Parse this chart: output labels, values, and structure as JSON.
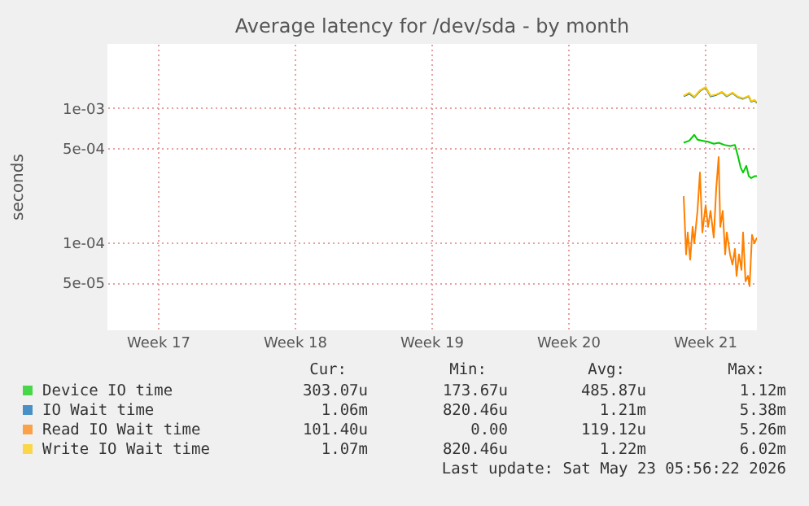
{
  "chart_data": {
    "type": "line",
    "title": "Average latency for /dev/sda - by month",
    "ylabel": "seconds",
    "log": true,
    "grid": true,
    "legend": "bottom",
    "line_style": "solid",
    "xlim": [
      "2026-04-20T00:00",
      "2026-05-23T06:00"
    ],
    "xticks": [
      {
        "value": "2026-04-22T14:00",
        "label": "Week 17"
      },
      {
        "value": "2026-04-29T14:00",
        "label": "Week 18"
      },
      {
        "value": "2026-05-06T14:00",
        "label": "Week 19"
      },
      {
        "value": "2026-05-13T14:00",
        "label": "Week 20"
      },
      {
        "value": "2026-05-20T14:00",
        "label": "Week 21"
      }
    ],
    "ylim": [
      2.2e-05,
      0.003
    ],
    "yticks": [
      {
        "value": 5e-05,
        "label": "5e-05"
      },
      {
        "value": 0.0001,
        "label": "1e-04"
      },
      {
        "value": 0.0005,
        "label": "5e-04"
      },
      {
        "value": 0.001,
        "label": "1e-03"
      }
    ],
    "series": [
      {
        "name": "Device IO time",
        "color": "#00cc00",
        "x": [
          "2026-05-19T12:00",
          "2026-05-19T19:00",
          "2026-05-20T01:00",
          "2026-05-20T05:00",
          "2026-05-20T11:00",
          "2026-05-20T18:00",
          "2026-05-21T01:00",
          "2026-05-21T07:00",
          "2026-05-21T14:00",
          "2026-05-21T21:00",
          "2026-05-22T03:00",
          "2026-05-22T07:00",
          "2026-05-22T10:00",
          "2026-05-22T13:00",
          "2026-05-22T17:00",
          "2026-05-22T20:00",
          "2026-05-22T23:00",
          "2026-05-23T03:00",
          "2026-05-23T06:00"
        ],
        "values": [
          0.00055,
          0.00057,
          0.00063,
          0.00058,
          0.00057,
          0.00056,
          0.00054,
          0.00055,
          0.00053,
          0.00052,
          0.00053,
          0.00043,
          0.00036,
          0.00033,
          0.00037,
          0.00031,
          0.0003,
          0.00031,
          0.00031
        ]
      },
      {
        "name": "IO Wait time",
        "color": "#0066b3",
        "x": [
          "2026-05-19T12:00",
          "2026-05-19T19:00",
          "2026-05-20T01:00",
          "2026-05-20T08:00",
          "2026-05-20T15:00",
          "2026-05-20T21:00",
          "2026-05-21T04:00",
          "2026-05-21T11:00",
          "2026-05-21T17:00",
          "2026-05-22T00:00",
          "2026-05-22T07:00",
          "2026-05-22T13:00",
          "2026-05-22T20:00",
          "2026-05-22T23:00",
          "2026-05-23T03:00",
          "2026-05-23T06:00"
        ],
        "values": [
          0.00122,
          0.00128,
          0.0012,
          0.00134,
          0.00142,
          0.00122,
          0.00125,
          0.00131,
          0.00122,
          0.00129,
          0.0012,
          0.00117,
          0.00122,
          0.00111,
          0.00114,
          0.00109
        ]
      },
      {
        "name": "Read IO Wait time",
        "color": "#ff8000",
        "x": [
          "2026-05-19T12:00",
          "2026-05-19T15:00",
          "2026-05-19T17:00",
          "2026-05-19T20:00",
          "2026-05-19T23:00",
          "2026-05-20T01:00",
          "2026-05-20T05:00",
          "2026-05-20T08:00",
          "2026-05-20T11:00",
          "2026-05-20T15:00",
          "2026-05-20T18:00",
          "2026-05-20T21:00",
          "2026-05-21T01:00",
          "2026-05-21T04:00",
          "2026-05-21T07:00",
          "2026-05-21T09:00",
          "2026-05-21T12:00",
          "2026-05-21T15:00",
          "2026-05-21T17:00",
          "2026-05-21T21:00",
          "2026-05-22T00:00",
          "2026-05-22T03:00",
          "2026-05-22T05:00",
          "2026-05-22T08:00",
          "2026-05-22T11:00",
          "2026-05-22T13:00",
          "2026-05-22T16:00",
          "2026-05-22T19:00",
          "2026-05-22T21:00",
          "2026-05-23T00:00",
          "2026-05-23T03:00",
          "2026-05-23T06:00"
        ],
        "values": [
          0.00022,
          8.1e-05,
          0.000118,
          7.4e-05,
          0.00013,
          9.8e-05,
          0.000171,
          0.00033,
          0.000118,
          0.000188,
          0.00013,
          0.000171,
          0.000108,
          0.00025,
          0.00043,
          0.00013,
          0.000171,
          8.1e-05,
          0.000118,
          8.1e-05,
          6.8e-05,
          8.9e-05,
          5.6e-05,
          8.1e-05,
          6.2e-05,
          0.000118,
          5.1e-05,
          5.6e-05,
          4.7e-05,
          0.000113,
          9.8e-05,
          0.000108
        ]
      },
      {
        "name": "Write IO Wait time",
        "color": "#ffcc00",
        "x": [
          "2026-05-19T12:00",
          "2026-05-19T19:00",
          "2026-05-20T01:00",
          "2026-05-20T08:00",
          "2026-05-20T15:00",
          "2026-05-20T21:00",
          "2026-05-21T04:00",
          "2026-05-21T11:00",
          "2026-05-21T17:00",
          "2026-05-22T00:00",
          "2026-05-22T07:00",
          "2026-05-22T13:00",
          "2026-05-22T20:00",
          "2026-05-22T23:00",
          "2026-05-23T03:00",
          "2026-05-23T06:00"
        ],
        "values": [
          0.00123,
          0.0013,
          0.00121,
          0.00135,
          0.00143,
          0.00123,
          0.00126,
          0.00132,
          0.00123,
          0.0013,
          0.00121,
          0.00118,
          0.00123,
          0.00112,
          0.00115,
          0.0011
        ]
      }
    ],
    "annotations": [
      "Cur:",
      "Min:",
      "Avg:",
      "Max:",
      "303.07u",
      "173.67u",
      "485.87u",
      "1.12m",
      "1.06m",
      "820.46u",
      "1.21m",
      "5.38m",
      "101.40u",
      "0.00",
      "119.12u",
      "5.26m",
      "1.07m",
      "820.46u",
      "1.22m",
      "6.02m",
      "Last update: Sat May 23 05:56:22 2026"
    ]
  }
}
